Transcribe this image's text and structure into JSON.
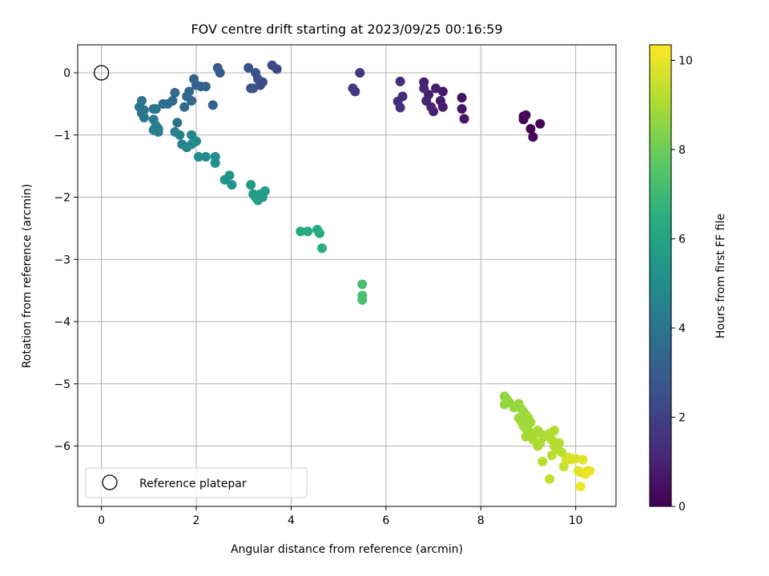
{
  "chart_data": {
    "type": "scatter",
    "title": "FOV centre drift starting at 2023/09/25 00:16:59",
    "xlabel": "Angular distance from reference (arcmin)",
    "ylabel": "Rotation from reference (arcmin)",
    "xlim": [
      -0.5,
      10.85
    ],
    "ylim": [
      -6.97,
      0.45
    ],
    "xticks": [
      0,
      2,
      4,
      6,
      8,
      10
    ],
    "yticks": [
      0,
      -1,
      -2,
      -3,
      -4,
      -5,
      -6
    ],
    "grid": true,
    "colormap": "viridis",
    "colorbar": {
      "label": "Hours from first FF file",
      "range": [
        0,
        10.35
      ],
      "ticks": [
        0,
        2,
        4,
        6,
        8,
        10
      ]
    },
    "legend": {
      "placement": "lower-left",
      "entries": [
        "Reference platepar"
      ]
    },
    "reference": {
      "x": 0,
      "y": 0,
      "label": "Reference platepar"
    },
    "series": [
      {
        "points": [
          [
            8.9,
            -0.7,
            0.0
          ],
          [
            8.9,
            -0.75,
            0.05
          ],
          [
            9.25,
            -0.82,
            0.1
          ],
          [
            9.05,
            -0.9,
            0.15
          ],
          [
            9.1,
            -1.03,
            0.2
          ],
          [
            8.95,
            -0.68,
            0.25
          ],
          [
            7.6,
            -0.4,
            0.5
          ],
          [
            7.6,
            -0.58,
            0.55
          ],
          [
            7.65,
            -0.74,
            0.6
          ],
          [
            7.2,
            -0.3,
            0.7
          ],
          [
            7.15,
            -0.45,
            0.75
          ],
          [
            7.2,
            -0.55,
            0.8
          ],
          [
            7.05,
            -0.25,
            0.85
          ],
          [
            7.0,
            -0.62,
            0.9
          ],
          [
            6.9,
            -0.35,
            0.95
          ],
          [
            6.8,
            -0.15,
            1.0
          ],
          [
            6.85,
            -0.45,
            1.05
          ],
          [
            6.95,
            -0.55,
            1.1
          ],
          [
            6.8,
            -0.25,
            1.15
          ],
          [
            6.3,
            -0.14,
            1.2
          ],
          [
            6.35,
            -0.38,
            1.25
          ],
          [
            6.25,
            -0.46,
            1.3
          ],
          [
            6.3,
            -0.56,
            1.35
          ],
          [
            5.45,
            0.0,
            1.6
          ],
          [
            5.3,
            -0.25,
            1.65
          ],
          [
            5.35,
            -0.3,
            1.7
          ],
          [
            3.7,
            0.06,
            2.3
          ],
          [
            3.6,
            0.12,
            2.35
          ],
          [
            3.4,
            -0.15,
            2.4
          ],
          [
            3.35,
            -0.2,
            2.45
          ],
          [
            3.3,
            -0.1,
            2.5
          ],
          [
            3.25,
            0.0,
            2.55
          ],
          [
            3.2,
            -0.25,
            2.6
          ],
          [
            3.1,
            0.08,
            2.65
          ],
          [
            3.15,
            -0.25,
            2.7
          ],
          [
            2.45,
            0.08,
            2.95
          ],
          [
            2.5,
            0.0,
            3.0
          ],
          [
            2.35,
            -0.52,
            3.1
          ],
          [
            2.2,
            -0.22,
            3.15
          ],
          [
            2.1,
            -0.22,
            3.2
          ],
          [
            2.0,
            -0.2,
            3.25
          ],
          [
            1.95,
            -0.1,
            3.3
          ],
          [
            1.85,
            -0.3,
            3.35
          ],
          [
            1.9,
            -0.45,
            3.4
          ],
          [
            1.8,
            -0.38,
            3.45
          ],
          [
            1.75,
            -0.55,
            3.5
          ],
          [
            1.55,
            -0.32,
            3.55
          ],
          [
            1.5,
            -0.45,
            3.6
          ],
          [
            1.4,
            -0.5,
            3.65
          ],
          [
            1.3,
            -0.5,
            3.7
          ],
          [
            1.6,
            -0.8,
            3.75
          ],
          [
            1.1,
            -0.58,
            3.8
          ],
          [
            0.85,
            -0.45,
            3.85
          ],
          [
            0.9,
            -0.6,
            3.9
          ],
          [
            0.8,
            -0.55,
            3.95
          ],
          [
            0.85,
            -0.65,
            4.0
          ],
          [
            0.9,
            -0.72,
            4.05
          ],
          [
            1.15,
            -0.58,
            4.15
          ],
          [
            1.1,
            -0.75,
            4.2
          ],
          [
            1.15,
            -0.85,
            4.3
          ],
          [
            1.2,
            -0.9,
            4.35
          ],
          [
            1.1,
            -0.92,
            4.4
          ],
          [
            1.2,
            -0.95,
            4.45
          ],
          [
            1.55,
            -0.95,
            4.5
          ],
          [
            1.65,
            -1.0,
            4.55
          ],
          [
            1.7,
            -1.15,
            4.6
          ],
          [
            1.8,
            -1.2,
            4.7
          ],
          [
            1.9,
            -1.0,
            4.75
          ],
          [
            2.0,
            -1.1,
            4.8
          ],
          [
            1.9,
            -1.15,
            4.85
          ],
          [
            2.05,
            -1.35,
            4.95
          ],
          [
            2.2,
            -1.35,
            5.0
          ],
          [
            2.4,
            -1.35,
            5.1
          ],
          [
            2.4,
            -1.45,
            5.15
          ],
          [
            2.6,
            -1.72,
            5.3
          ],
          [
            2.7,
            -1.65,
            5.35
          ],
          [
            2.75,
            -1.8,
            5.4
          ],
          [
            3.15,
            -1.8,
            5.5
          ],
          [
            3.2,
            -1.95,
            5.55
          ],
          [
            3.25,
            -2.0,
            5.6
          ],
          [
            3.3,
            -2.05,
            5.65
          ],
          [
            3.35,
            -1.95,
            5.7
          ],
          [
            3.4,
            -2.0,
            5.75
          ],
          [
            3.45,
            -1.9,
            5.8
          ],
          [
            4.2,
            -2.55,
            6.2
          ],
          [
            4.35,
            -2.55,
            6.25
          ],
          [
            4.55,
            -2.52,
            6.35
          ],
          [
            4.6,
            -2.58,
            6.4
          ],
          [
            4.65,
            -2.82,
            6.5
          ],
          [
            5.5,
            -3.4,
            7.2
          ],
          [
            5.5,
            -3.58,
            7.25
          ],
          [
            5.5,
            -3.65,
            7.3
          ],
          [
            8.5,
            -5.2,
            8.6
          ],
          [
            8.55,
            -5.25,
            8.62
          ],
          [
            8.6,
            -5.3,
            8.64
          ],
          [
            8.5,
            -5.33,
            8.66
          ],
          [
            8.7,
            -5.38,
            8.68
          ],
          [
            8.8,
            -5.32,
            8.7
          ],
          [
            8.85,
            -5.4,
            8.72
          ],
          [
            8.9,
            -5.45,
            8.74
          ],
          [
            8.95,
            -5.5,
            8.76
          ],
          [
            8.8,
            -5.55,
            8.78
          ],
          [
            8.85,
            -5.6,
            8.8
          ],
          [
            9.0,
            -5.55,
            8.82
          ],
          [
            8.9,
            -5.68,
            8.84
          ],
          [
            8.95,
            -5.72,
            8.86
          ],
          [
            9.05,
            -5.62,
            8.88
          ],
          [
            9.0,
            -5.75,
            8.9
          ],
          [
            9.2,
            -5.75,
            8.92
          ],
          [
            8.95,
            -5.85,
            8.94
          ],
          [
            9.15,
            -5.8,
            8.96
          ],
          [
            9.3,
            -5.82,
            8.98
          ],
          [
            9.1,
            -5.9,
            9.0
          ],
          [
            9.2,
            -6.0,
            9.02
          ],
          [
            9.25,
            -5.95,
            9.04
          ],
          [
            9.35,
            -5.85,
            9.06
          ],
          [
            9.45,
            -5.8,
            9.08
          ],
          [
            9.5,
            -5.9,
            9.1
          ],
          [
            9.55,
            -5.75,
            9.12
          ],
          [
            9.55,
            -6.0,
            9.14
          ],
          [
            9.6,
            -6.05,
            9.16
          ],
          [
            9.65,
            -5.95,
            9.18
          ],
          [
            9.7,
            -6.1,
            9.2
          ],
          [
            9.3,
            -6.25,
            9.25
          ],
          [
            9.5,
            -6.15,
            9.3
          ],
          [
            9.45,
            -6.53,
            9.35
          ],
          [
            9.75,
            -6.33,
            9.45
          ],
          [
            9.8,
            -6.2,
            9.6
          ],
          [
            9.85,
            -6.18,
            9.7
          ],
          [
            9.9,
            -6.22,
            9.75
          ],
          [
            10.0,
            -6.2,
            9.8
          ],
          [
            10.05,
            -6.4,
            9.85
          ],
          [
            10.15,
            -6.22,
            9.9
          ],
          [
            10.1,
            -6.42,
            9.95
          ],
          [
            10.2,
            -6.45,
            10.0
          ],
          [
            10.25,
            -6.4,
            10.05
          ],
          [
            10.3,
            -6.4,
            10.1
          ],
          [
            10.1,
            -6.65,
            10.15
          ]
        ]
      }
    ]
  }
}
